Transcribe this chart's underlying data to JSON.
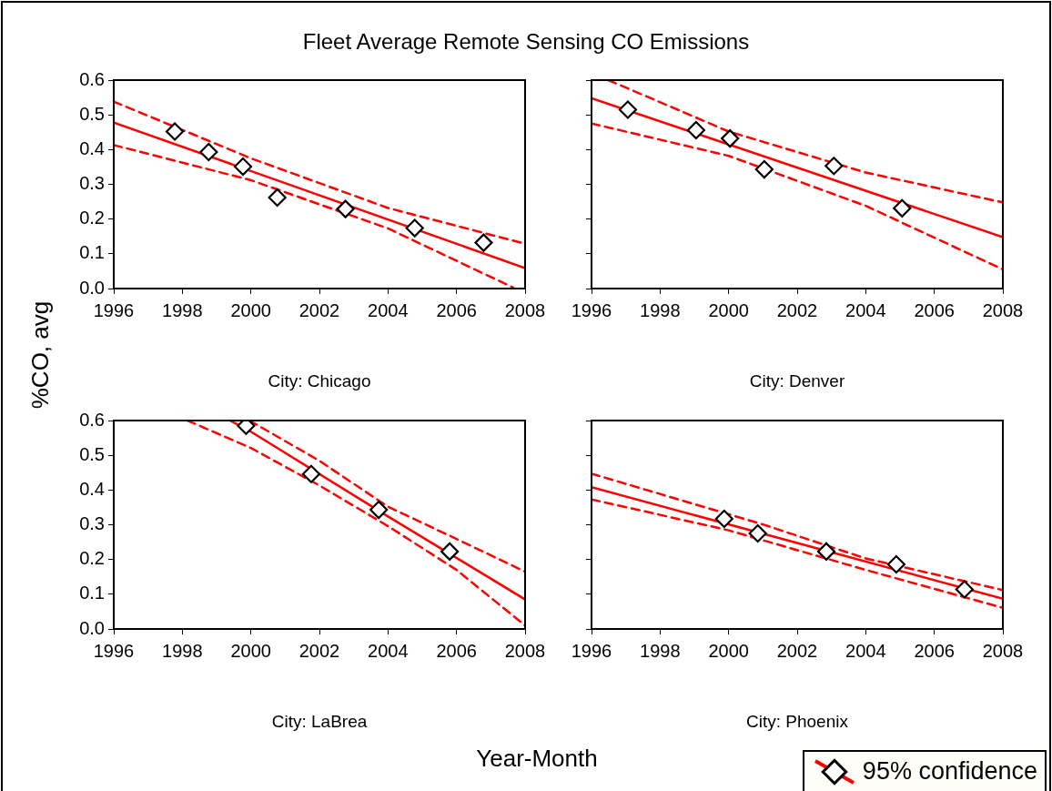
{
  "chart_data": [
    {
      "type": "scatter",
      "title": "Fleet Average Remote Sensing CO Emissions",
      "ylabel": "%CO, avg",
      "xlabel": "City: Chicago",
      "xlim": [
        1996,
        2008
      ],
      "xticks": [
        1996,
        1998,
        2000,
        2002,
        2004,
        2006,
        2008
      ],
      "ylim": [
        0,
        0.6
      ],
      "yticks": [
        {
          "value": 0,
          "label": "0.0"
        },
        0.1,
        0.2,
        0.3,
        0.4,
        0.5,
        0.6
      ],
      "series": [
        {
          "type": "scatter",
          "marker": "diamond",
          "color": "#000000",
          "x": [
            1997.78,
            1998.77,
            1999.77,
            2000.77,
            2002.76,
            2004.78,
            2006.79
          ],
          "values": [
            0.452,
            0.393,
            0.351,
            0.262,
            0.229,
            0.174,
            0.132
          ]
        },
        {
          "type": "line",
          "line_style": "solid",
          "color": "#ff0000",
          "x": [
            1996,
            2008
          ],
          "values": [
            0.478,
            0.059
          ]
        },
        {
          "type": "line",
          "line_style": "dashed",
          "color": "#ff0000",
          "x": [
            1996,
            2000,
            2004,
            2008
          ],
          "values": [
            0.538,
            0.375,
            0.232,
            0.129
          ]
        },
        {
          "type": "line",
          "line_style": "dashed",
          "color": "#ff0000",
          "x": [
            1996,
            2000,
            2004,
            2007.65
          ],
          "values": [
            0.413,
            0.312,
            0.173,
            0.003
          ]
        }
      ]
    },
    {
      "type": "scatter",
      "xlabel": "City: Denver",
      "tick_labels": "x",
      "xlim": [
        1996,
        2008
      ],
      "xticks": [
        1996,
        1998,
        2000,
        2002,
        2004,
        2006,
        2008
      ],
      "ylim": [
        0,
        0.6
      ],
      "yticks": [
        0,
        0.1,
        0.2,
        0.3,
        0.4,
        0.5,
        0.6
      ],
      "series": [
        {
          "type": "scatter",
          "marker": "diamond",
          "color": "#000000",
          "x": [
            1997.06,
            1999.05,
            2000.04,
            2001.04,
            2003.07,
            2005.06
          ],
          "values": [
            0.515,
            0.456,
            0.432,
            0.343,
            0.353,
            0.231
          ]
        },
        {
          "type": "line",
          "line_style": "solid",
          "color": "#ff0000",
          "x": [
            1996,
            2008
          ],
          "values": [
            0.548,
            0.148
          ]
        },
        {
          "type": "line",
          "line_style": "dashed",
          "color": "#ff0000",
          "x": [
            1996.49,
            2000,
            2004,
            2008
          ],
          "values": [
            0.6,
            0.452,
            0.334,
            0.248
          ]
        },
        {
          "type": "line",
          "line_style": "dashed",
          "color": "#ff0000",
          "x": [
            1996,
            2000,
            2004,
            2008
          ],
          "values": [
            0.475,
            0.382,
            0.238,
            0.055
          ]
        }
      ]
    },
    {
      "type": "scatter",
      "xlabel": "City: LaBrea",
      "annotations": [
        "Year-Month"
      ],
      "xlim": [
        1996,
        2008
      ],
      "xticks": [
        1996,
        1998,
        2000,
        2002,
        2004,
        2006,
        2008
      ],
      "ylim": [
        0,
        0.6
      ],
      "yticks": [
        {
          "value": 0,
          "label": "0.0"
        },
        0.1,
        0.2,
        0.3,
        0.4,
        0.5,
        0.6
      ],
      "series": [
        {
          "type": "scatter",
          "marker": "diamond",
          "color": "#000000",
          "x": [
            1999.86,
            2001.76,
            2003.73,
            2005.8
          ],
          "values": [
            0.585,
            0.446,
            0.343,
            0.223
          ]
        },
        {
          "type": "line",
          "line_style": "solid",
          "color": "#ff0000",
          "x": [
            1999.39,
            2000,
            2004,
            2008
          ],
          "values": [
            0.6,
            0.568,
            0.324,
            0.085
          ]
        },
        {
          "type": "line",
          "line_style": "dashed",
          "color": "#ff0000",
          "x": [
            1999.96,
            2002,
            2004,
            2006,
            2008
          ],
          "values": [
            0.6,
            0.484,
            0.352,
            0.259,
            0.165
          ]
        },
        {
          "type": "line",
          "line_style": "dashed",
          "color": "#ff0000",
          "x": [
            1998.15,
            2000,
            2002,
            2004,
            2006,
            2008
          ],
          "values": [
            0.6,
            0.521,
            0.413,
            0.296,
            0.17,
            0.01
          ]
        }
      ]
    },
    {
      "type": "scatter",
      "xlabel": "City: Phoenix",
      "tick_labels": "x",
      "legend": "bottom right",
      "xlim": [
        1996,
        2008
      ],
      "xticks": [
        1996,
        1998,
        2000,
        2002,
        2004,
        2006,
        2008
      ],
      "ylim": [
        0,
        0.6
      ],
      "yticks": [
        0,
        0.1,
        0.2,
        0.3,
        0.4,
        0.5,
        0.6
      ],
      "series": [
        {
          "type": "scatter",
          "marker": "diamond",
          "color": "#000000",
          "x": [
            1999.87,
            2000.85,
            2002.85,
            2004.89,
            2006.88
          ],
          "values": [
            0.317,
            0.275,
            0.223,
            0.186,
            0.114
          ]
        },
        {
          "type": "line",
          "line_style": "solid",
          "color": "#ff0000",
          "name": "95% confidence",
          "x": [
            1996,
            2008
          ],
          "values": [
            0.408,
            0.087
          ]
        },
        {
          "type": "line",
          "line_style": "dashed",
          "color": "#ff0000",
          "x": [
            1996,
            2001,
            2004,
            2008
          ],
          "values": [
            0.447,
            0.301,
            0.203,
            0.112
          ]
        },
        {
          "type": "line",
          "line_style": "dashed",
          "color": "#ff0000",
          "x": [
            1996,
            2000,
            2004,
            2008
          ],
          "values": [
            0.373,
            0.284,
            0.17,
            0.061
          ]
        }
      ]
    }
  ]
}
